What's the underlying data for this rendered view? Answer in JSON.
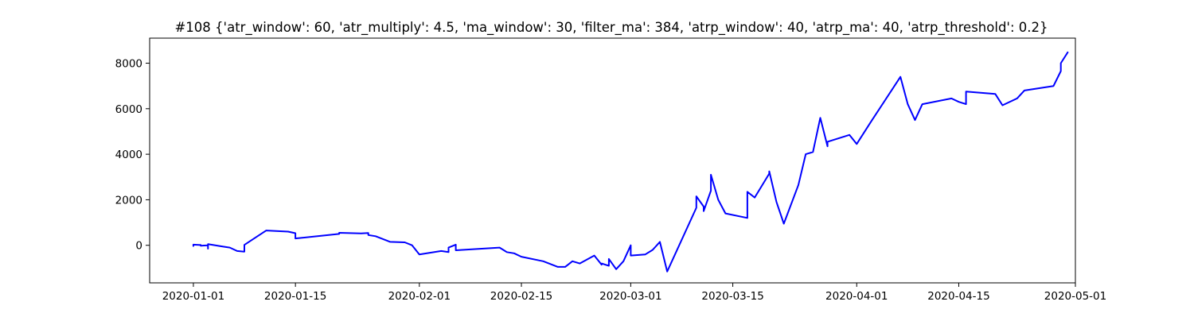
{
  "chart_data": {
    "type": "line",
    "title": "#108 {'atr_window': 60, 'atr_multiply': 4.5, 'ma_window': 30, 'filter_ma': 384, 'atrp_window': 40, 'atrp_ma': 40, 'atrp_threshold': 0.2}",
    "xlabel": "",
    "ylabel": "",
    "x_axis_type": "date",
    "xlim": [
      "2019-12-26",
      "2020-05-01"
    ],
    "ylim": [
      -1650,
      9100
    ],
    "x_ticks": [
      "2020-01-01",
      "2020-01-15",
      "2020-02-01",
      "2020-02-15",
      "2020-03-01",
      "2020-03-15",
      "2020-04-01",
      "2020-04-15",
      "2020-05-01"
    ],
    "y_ticks": [
      0,
      2000,
      4000,
      6000,
      8000
    ],
    "grid": false,
    "legend": "none",
    "series": [
      {
        "color": "#0000ff",
        "points": [
          [
            "2020-01-01",
            0
          ],
          [
            "2020-01-01",
            -30
          ],
          [
            "2020-01-01",
            30
          ],
          [
            "2020-01-02",
            10
          ],
          [
            "2020-01-02",
            20
          ],
          [
            "2020-01-02",
            -20
          ],
          [
            "2020-01-03",
            0
          ],
          [
            "2020-01-03",
            -50
          ],
          [
            "2020-01-03",
            -150
          ],
          [
            "2020-01-03",
            50
          ],
          [
            "2020-01-05",
            -50
          ],
          [
            "2020-01-06",
            -100
          ],
          [
            "2020-01-07",
            -250
          ],
          [
            "2020-01-08",
            -280
          ],
          [
            "2020-01-08",
            20
          ],
          [
            "2020-01-11",
            650
          ],
          [
            "2020-01-14",
            600
          ],
          [
            "2020-01-15",
            530
          ],
          [
            "2020-01-15",
            300
          ],
          [
            "2020-01-21",
            500
          ],
          [
            "2020-01-21",
            550
          ],
          [
            "2020-01-24",
            520
          ],
          [
            "2020-01-25",
            540
          ],
          [
            "2020-01-25",
            450
          ],
          [
            "2020-01-26",
            400
          ],
          [
            "2020-01-28",
            150
          ],
          [
            "2020-01-30",
            130
          ],
          [
            "2020-01-31",
            0
          ],
          [
            "2020-02-01",
            -400
          ],
          [
            "2020-02-04",
            -250
          ],
          [
            "2020-02-05",
            -300
          ],
          [
            "2020-02-05",
            -100
          ],
          [
            "2020-02-06",
            30
          ],
          [
            "2020-02-06",
            -220
          ],
          [
            "2020-02-12",
            -100
          ],
          [
            "2020-02-13",
            -300
          ],
          [
            "2020-02-14",
            -350
          ],
          [
            "2020-02-15",
            -500
          ],
          [
            "2020-02-18",
            -700
          ],
          [
            "2020-02-20",
            -950
          ],
          [
            "2020-02-21",
            -950
          ],
          [
            "2020-02-22",
            -700
          ],
          [
            "2020-02-23",
            -800
          ],
          [
            "2020-02-25",
            -450
          ],
          [
            "2020-02-26",
            -850
          ],
          [
            "2020-02-26",
            -800
          ],
          [
            "2020-02-27",
            -900
          ],
          [
            "2020-02-27",
            -600
          ],
          [
            "2020-02-28",
            -1050
          ],
          [
            "2020-02-29",
            -700
          ],
          [
            "2020-03-01",
            0
          ],
          [
            "2020-03-01",
            -450
          ],
          [
            "2020-03-03",
            -400
          ],
          [
            "2020-03-04",
            -200
          ],
          [
            "2020-03-05",
            150
          ],
          [
            "2020-03-06",
            -1150
          ],
          [
            "2020-03-10",
            1650
          ],
          [
            "2020-03-10",
            2150
          ],
          [
            "2020-03-11",
            1700
          ],
          [
            "2020-03-11",
            1500
          ],
          [
            "2020-03-12",
            2400
          ],
          [
            "2020-03-12",
            3100
          ],
          [
            "2020-03-13",
            2000
          ],
          [
            "2020-03-14",
            1400
          ],
          [
            "2020-03-17",
            1200
          ],
          [
            "2020-03-17",
            2350
          ],
          [
            "2020-03-18",
            2100
          ],
          [
            "2020-03-20",
            3150
          ],
          [
            "2020-03-20",
            3250
          ],
          [
            "2020-03-21",
            1900
          ],
          [
            "2020-03-22",
            950
          ],
          [
            "2020-03-24",
            2650
          ],
          [
            "2020-03-25",
            4000
          ],
          [
            "2020-03-26",
            4100
          ],
          [
            "2020-03-27",
            5600
          ],
          [
            "2020-03-28",
            4350
          ],
          [
            "2020-03-28",
            4550
          ],
          [
            "2020-03-31",
            4850
          ],
          [
            "2020-04-01",
            4450
          ],
          [
            "2020-04-03",
            5450
          ],
          [
            "2020-04-07",
            7400
          ],
          [
            "2020-04-08",
            6200
          ],
          [
            "2020-04-09",
            5500
          ],
          [
            "2020-04-10",
            6200
          ],
          [
            "2020-04-14",
            6450
          ],
          [
            "2020-04-15",
            6300
          ],
          [
            "2020-04-16",
            6200
          ],
          [
            "2020-04-16",
            6750
          ],
          [
            "2020-04-20",
            6650
          ],
          [
            "2020-04-21",
            6150
          ],
          [
            "2020-04-23",
            6450
          ],
          [
            "2020-04-24",
            6800
          ],
          [
            "2020-04-28",
            7000
          ],
          [
            "2020-04-29",
            7650
          ],
          [
            "2020-04-29",
            8000
          ],
          [
            "2020-04-30",
            8500
          ]
        ]
      }
    ]
  }
}
